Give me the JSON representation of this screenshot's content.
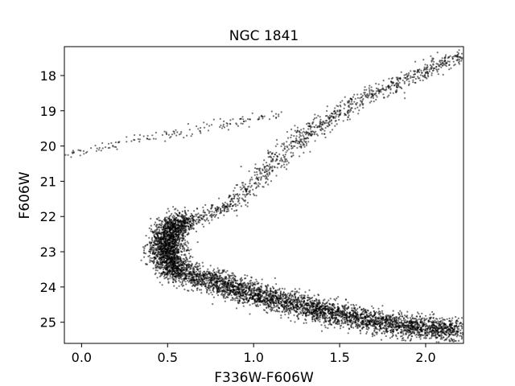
{
  "chart_data": {
    "type": "scatter",
    "title": "NGC 1841",
    "xlabel": "F336W-F606W",
    "ylabel": "F606W",
    "xlim": [
      -0.1,
      2.22
    ],
    "ylim": [
      25.6,
      17.18
    ],
    "y_inverted": true,
    "xticks": [
      0.0,
      0.5,
      1.0,
      1.5,
      2.0
    ],
    "xtick_labels": [
      "0.0",
      "0.5",
      "1.0",
      "1.5",
      "2.0"
    ],
    "yticks": [
      18,
      19,
      20,
      21,
      22,
      23,
      24,
      25
    ],
    "ytick_labels": [
      "18",
      "19",
      "20",
      "21",
      "22",
      "23",
      "24",
      "25"
    ],
    "grid": false,
    "legend": "none",
    "marker_color": "#000000",
    "description_of_sequences": [
      {
        "name": "horizontal branch",
        "points": [
          [
            -0.07,
            20.25
          ],
          [
            0.0,
            20.15
          ],
          [
            0.2,
            19.95
          ],
          [
            0.5,
            19.65
          ],
          [
            0.75,
            19.45
          ],
          [
            0.9,
            19.32
          ],
          [
            1.1,
            19.15
          ],
          [
            1.17,
            19.05
          ]
        ]
      },
      {
        "name": "red giant branch",
        "points": [
          [
            0.55,
            22.2
          ],
          [
            0.72,
            21.95
          ],
          [
            0.85,
            21.7
          ],
          [
            0.95,
            21.3
          ],
          [
            1.05,
            20.8
          ],
          [
            1.17,
            20.2
          ],
          [
            1.3,
            19.7
          ],
          [
            1.5,
            19.05
          ],
          [
            1.65,
            18.6
          ],
          [
            1.85,
            18.2
          ],
          [
            2.05,
            17.8
          ],
          [
            2.2,
            17.35
          ]
        ]
      },
      {
        "name": "subgiant branch / turnoff",
        "points": [
          [
            0.58,
            22.1
          ],
          [
            0.52,
            22.4
          ],
          [
            0.49,
            22.8
          ],
          [
            0.5,
            23.2
          ],
          [
            0.56,
            23.6
          ]
        ]
      },
      {
        "name": "main sequence",
        "points": [
          [
            0.6,
            23.6
          ],
          [
            0.8,
            23.9
          ],
          [
            1.0,
            24.2
          ],
          [
            1.2,
            24.45
          ],
          [
            1.4,
            24.7
          ],
          [
            1.6,
            24.9
          ],
          [
            1.8,
            25.05
          ],
          [
            2.0,
            25.15
          ],
          [
            2.2,
            25.25
          ]
        ]
      }
    ]
  }
}
